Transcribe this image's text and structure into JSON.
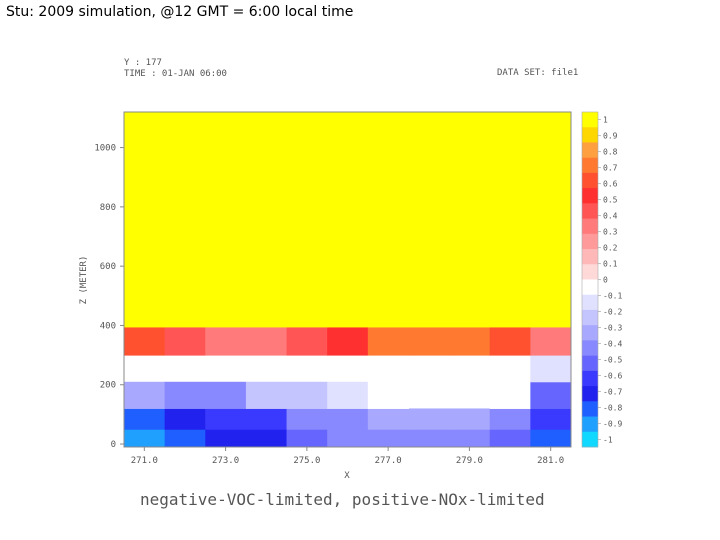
{
  "slide_title": "Stu: 2009 simulation, @12 GMT = 6:00 local time",
  "header": {
    "y_line": "Y : 177",
    "time_line": "TIME : 01-JAN 06:00",
    "dataset_line": "DATA SET: file1"
  },
  "caption": "negative-VOC-limited, positive-NOx-limited",
  "chart_data": {
    "type": "heatmap",
    "xlabel": "X",
    "ylabel": "Z (METER)",
    "x_ticks": [
      "271.0",
      "273.0",
      "275.0",
      "277.0",
      "279.0",
      "281.0"
    ],
    "x_tick_values": [
      271,
      273,
      275,
      277,
      279,
      281
    ],
    "y_ticks": [
      "0",
      "200",
      "400",
      "600",
      "800",
      "1000"
    ],
    "y_tick_values": [
      0,
      200,
      400,
      600,
      800,
      1000
    ],
    "xlim": [
      270.5,
      281.5
    ],
    "ylim": [
      -10,
      1120
    ],
    "x_centers": [
      271,
      272,
      273,
      274,
      275,
      276,
      277,
      278,
      279,
      280,
      281
    ],
    "z_rows": [
      {
        "bottom": -10,
        "top": 50
      },
      {
        "bottom": 50,
        "top": 120
      },
      {
        "bottom": 120,
        "top": 210
      },
      {
        "bottom": 210,
        "top": 300
      },
      {
        "bottom": 300,
        "top": 395
      },
      {
        "bottom": 395,
        "top": 490
      },
      {
        "bottom": 490,
        "top": 1120
      }
    ],
    "values": [
      [
        -1.0,
        -0.9,
        -0.8,
        -0.8,
        -0.65,
        -0.5,
        -0.5,
        -0.5,
        -0.5,
        -0.65,
        -0.9
      ],
      [
        -0.9,
        -0.85,
        -0.75,
        -0.7,
        -0.55,
        -0.5,
        -0.4,
        -0.4,
        -0.4,
        -0.55,
        -0.75
      ],
      [
        -0.4,
        -0.5,
        -0.5,
        -0.35,
        -0.3,
        -0.2,
        -0.15,
        null,
        null,
        -0.15,
        -0.6
      ],
      [
        null,
        null,
        null,
        null,
        null,
        null,
        null,
        null,
        null,
        null,
        -0.25
      ],
      [
        0.55,
        0.35,
        0.25,
        0.25,
        0.35,
        0.45,
        0.65,
        0.7,
        0.7,
        0.55,
        0.3
      ],
      [
        1.0,
        1.0,
        1.0,
        1.0,
        1.0,
        1.0,
        1.0,
        1.0,
        1.0,
        1.0,
        0.95
      ],
      [
        1.0,
        1.0,
        1.0,
        1.0,
        1.0,
        1.0,
        1.0,
        1.0,
        1.0,
        1.0,
        1.0
      ]
    ],
    "colorbar": {
      "labels": [
        "1",
        "0.9",
        "0.8",
        "0.7",
        "0.6",
        "0.5",
        "0.4",
        "0.3",
        "0.2",
        "0.1",
        "0",
        "-0.1",
        "-0.2",
        "-0.3",
        "-0.4",
        "-0.5",
        "-0.6",
        "-0.7",
        "-0.8",
        "-0.9",
        "-1"
      ],
      "values": [
        1,
        0.9,
        0.8,
        0.7,
        0.6,
        0.5,
        0.4,
        0.3,
        0.2,
        0.1,
        0,
        -0.1,
        -0.2,
        -0.3,
        -0.4,
        -0.5,
        -0.6,
        -0.7,
        -0.8,
        -0.9,
        -1
      ],
      "band_colors": [
        "#ffff00",
        "#ffd700",
        "#ffa040",
        "#ff7a30",
        "#ff5030",
        "#ff3030",
        "#ff5555",
        "#ff7a7a",
        "#ff9a9a",
        "#ffb8b8",
        "#ffd8d8",
        "#ffffff",
        "#e0e0ff",
        "#c4c4ff",
        "#a8a8ff",
        "#8888ff",
        "#6666ff",
        "#3a3aff",
        "#2222ee",
        "#1f5fff",
        "#1fa0ff",
        "#10d8ff"
      ]
    }
  }
}
